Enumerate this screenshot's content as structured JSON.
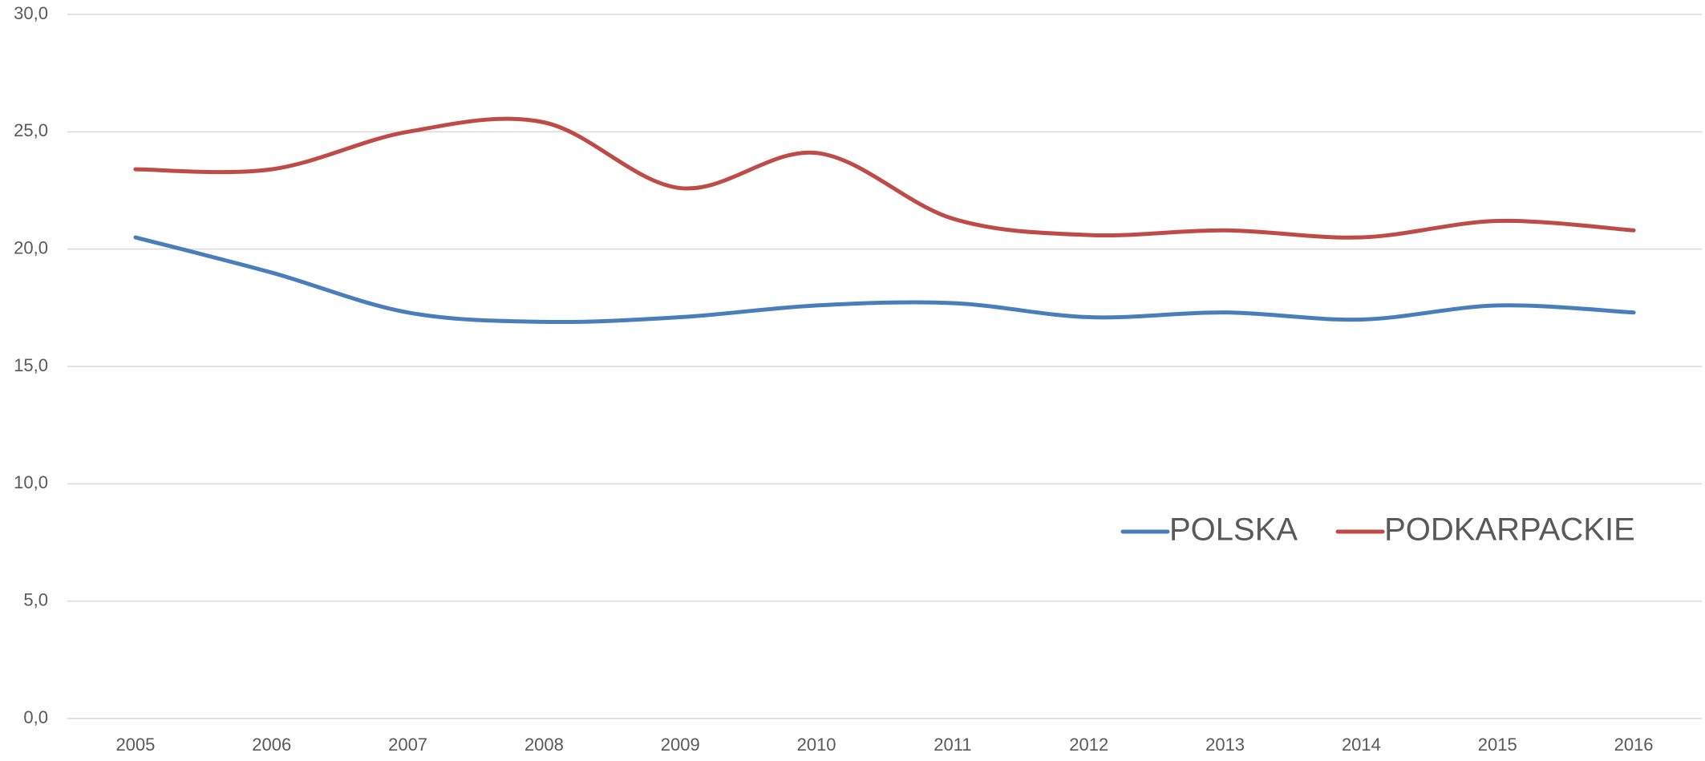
{
  "chart_data": {
    "type": "line",
    "categories": [
      "2005",
      "2006",
      "2007",
      "2008",
      "2009",
      "2010",
      "2011",
      "2012",
      "2013",
      "2014",
      "2015",
      "2016"
    ],
    "series": [
      {
        "name": "POLSKA",
        "color": "#4a7ebb",
        "values": [
          20.5,
          19.0,
          17.3,
          16.9,
          17.1,
          17.6,
          17.7,
          17.1,
          17.3,
          17.0,
          17.6,
          17.3
        ]
      },
      {
        "name": "PODKARPACKIE",
        "color": "#be4b48",
        "values": [
          23.4,
          23.4,
          25.0,
          25.4,
          22.6,
          24.1,
          21.3,
          20.6,
          20.8,
          20.5,
          21.2,
          20.8
        ]
      }
    ],
    "ylim": [
      0,
      30
    ],
    "yticks": [
      {
        "value": 0,
        "label": "0,0"
      },
      {
        "value": 5,
        "label": "5,0"
      },
      {
        "value": 10,
        "label": "10,0"
      },
      {
        "value": 15,
        "label": "15,0"
      },
      {
        "value": 20,
        "label": "20,0"
      },
      {
        "value": 25,
        "label": "25,0"
      },
      {
        "value": 30,
        "label": "30,0"
      }
    ],
    "grid": true,
    "smooth": true,
    "legend": "right"
  }
}
